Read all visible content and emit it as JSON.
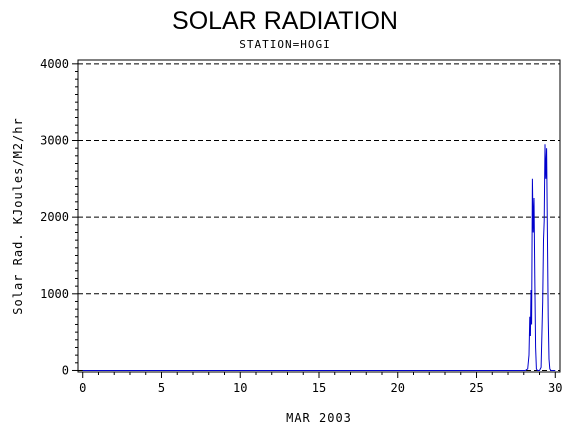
{
  "chart_data": {
    "type": "line",
    "title": "SOLAR RADIATION",
    "subtitle": "STATION=HOGI",
    "xlabel": "MAR 2003",
    "ylabel": "Solar Rad. KJoules/M2/hr",
    "xlim": [
      -0.3,
      30.3
    ],
    "ylim": [
      -20,
      4050
    ],
    "x_ticks": [
      0,
      5,
      10,
      15,
      20,
      25,
      30
    ],
    "y_ticks": [
      0,
      1000,
      2000,
      3000,
      4000
    ],
    "minor_ticks": true,
    "grid": "horizontal-dashed",
    "legend": "none",
    "series": [
      {
        "color": "#0000cc",
        "x": [
          0,
          28.1,
          28.25,
          28.33,
          28.38,
          28.42,
          28.46,
          28.5,
          28.55,
          28.6,
          28.65,
          28.7,
          28.75,
          28.8,
          28.88,
          29.0,
          29.1,
          29.2,
          29.25,
          29.3,
          29.35,
          29.4,
          29.45,
          29.5,
          29.55,
          29.6,
          29.65,
          29.72,
          29.8,
          29.9,
          30.0
        ],
        "y": [
          0,
          0,
          20,
          200,
          700,
          450,
          1050,
          600,
          2500,
          1800,
          2250,
          1200,
          300,
          20,
          0,
          0,
          40,
          900,
          1700,
          1950,
          2950,
          2500,
          2900,
          1800,
          700,
          150,
          20,
          0,
          0,
          0,
          0
        ]
      }
    ]
  }
}
